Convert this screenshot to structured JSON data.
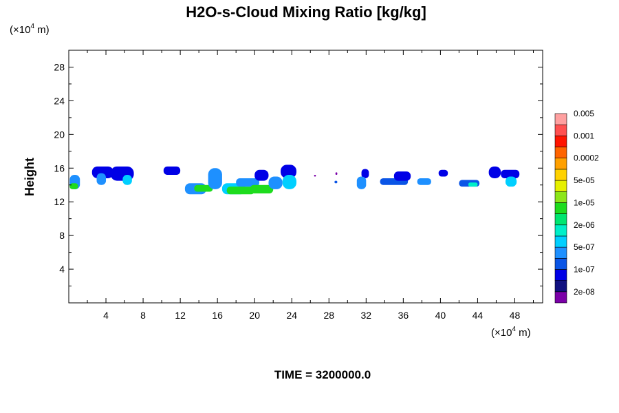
{
  "chart_data": {
    "type": "heatmap",
    "title": "H2O-s-Cloud Mixing Ratio [kg/kg]",
    "ylabel": "Height",
    "y_unit_base": "(×10",
    "y_unit_exp": "4",
    "y_unit_tail": " m)",
    "x_unit_base": "(×10",
    "x_unit_exp": "4",
    "x_unit_tail": " m)",
    "xlim": [
      0,
      51
    ],
    "ylim": [
      0,
      30
    ],
    "x_ticks": [
      "4",
      "8",
      "12",
      "16",
      "20",
      "24",
      "28",
      "32",
      "36",
      "40",
      "44",
      "48"
    ],
    "y_ticks": [
      "4",
      "8",
      "12",
      "16",
      "20",
      "24",
      "28"
    ],
    "footer": "TIME = 3200000.0",
    "colorbar": {
      "colors": [
        "#7b00a8",
        "#101080",
        "#0000e6",
        "#0a55e6",
        "#1e90ff",
        "#00cfff",
        "#00efc8",
        "#00e670",
        "#1edc1e",
        "#8ce619",
        "#e6f000",
        "#ffd200",
        "#ffa000",
        "#ff6400",
        "#ff1400",
        "#ff5050",
        "#ffa0a0"
      ],
      "labels": [
        "2e-08",
        "1e-07",
        "5e-07",
        "2e-06",
        "1e-05",
        "5e-05",
        "0.0002",
        "0.001",
        "0.005"
      ]
    },
    "clouds": [
      {
        "x": [
          0.1,
          1.2
        ],
        "y": [
          13.5,
          15.2
        ],
        "level": 4
      },
      {
        "x": [
          0.1,
          1.0
        ],
        "y": [
          13.5,
          14.2
        ],
        "level": 8
      },
      {
        "x": [
          2.5,
          4.8
        ],
        "y": [
          14.8,
          16.2
        ],
        "level": 2
      },
      {
        "x": [
          3.0,
          4.0
        ],
        "y": [
          14.0,
          15.4
        ],
        "level": 4
      },
      {
        "x": [
          4.5,
          7.0
        ],
        "y": [
          14.5,
          16.2
        ],
        "level": 2
      },
      {
        "x": [
          5.8,
          6.8
        ],
        "y": [
          14.0,
          15.2
        ],
        "level": 5
      },
      {
        "x": [
          10.2,
          12.0
        ],
        "y": [
          15.2,
          16.2
        ],
        "level": 2
      },
      {
        "x": [
          12.5,
          14.8
        ],
        "y": [
          12.9,
          14.2
        ],
        "level": 4
      },
      {
        "x": [
          13.5,
          15.5
        ],
        "y": [
          13.2,
          14.0
        ],
        "level": 8
      },
      {
        "x": [
          15.0,
          16.5
        ],
        "y": [
          13.5,
          16.0
        ],
        "level": 4
      },
      {
        "x": [
          16.5,
          19.0
        ],
        "y": [
          12.9,
          14.2
        ],
        "level": 5
      },
      {
        "x": [
          17.0,
          20.0
        ],
        "y": [
          12.9,
          13.8
        ],
        "level": 8
      },
      {
        "x": [
          18.0,
          20.5
        ],
        "y": [
          13.8,
          14.8
        ],
        "level": 4
      },
      {
        "x": [
          19.5,
          22.0
        ],
        "y": [
          13.0,
          14.0
        ],
        "level": 8
      },
      {
        "x": [
          20.0,
          21.5
        ],
        "y": [
          14.5,
          15.8
        ],
        "level": 2
      },
      {
        "x": [
          21.5,
          23.0
        ],
        "y": [
          13.5,
          15.0
        ],
        "level": 4
      },
      {
        "x": [
          22.8,
          24.5
        ],
        "y": [
          14.8,
          16.4
        ],
        "level": 2
      },
      {
        "x": [
          23.0,
          24.5
        ],
        "y": [
          13.5,
          15.2
        ],
        "level": 5
      },
      {
        "x": [
          26.4,
          26.6
        ],
        "y": [
          15.0,
          15.2
        ],
        "level": 0
      },
      {
        "x": [
          28.7,
          28.9
        ],
        "y": [
          15.2,
          15.5
        ],
        "level": 0
      },
      {
        "x": [
          28.6,
          28.9
        ],
        "y": [
          14.2,
          14.5
        ],
        "level": 3
      },
      {
        "x": [
          31.5,
          32.3
        ],
        "y": [
          14.8,
          15.9
        ],
        "level": 2
      },
      {
        "x": [
          31.0,
          32.0
        ],
        "y": [
          13.5,
          15.0
        ],
        "level": 4
      },
      {
        "x": [
          33.5,
          36.5
        ],
        "y": [
          14.0,
          14.8
        ],
        "level": 3
      },
      {
        "x": [
          35.0,
          36.8
        ],
        "y": [
          14.5,
          15.6
        ],
        "level": 2
      },
      {
        "x": [
          37.5,
          39.0
        ],
        "y": [
          14.0,
          14.8
        ],
        "level": 4
      },
      {
        "x": [
          39.8,
          40.8
        ],
        "y": [
          15.0,
          15.8
        ],
        "level": 2
      },
      {
        "x": [
          42.0,
          44.2
        ],
        "y": [
          13.8,
          14.6
        ],
        "level": 3
      },
      {
        "x": [
          43.0,
          44.0
        ],
        "y": [
          13.8,
          14.3
        ],
        "level": 6
      },
      {
        "x": [
          45.2,
          46.5
        ],
        "y": [
          14.8,
          16.2
        ],
        "level": 2
      },
      {
        "x": [
          46.5,
          48.5
        ],
        "y": [
          14.8,
          15.8
        ],
        "level": 2
      },
      {
        "x": [
          47.0,
          48.2
        ],
        "y": [
          13.8,
          15.0
        ],
        "level": 5
      }
    ]
  }
}
